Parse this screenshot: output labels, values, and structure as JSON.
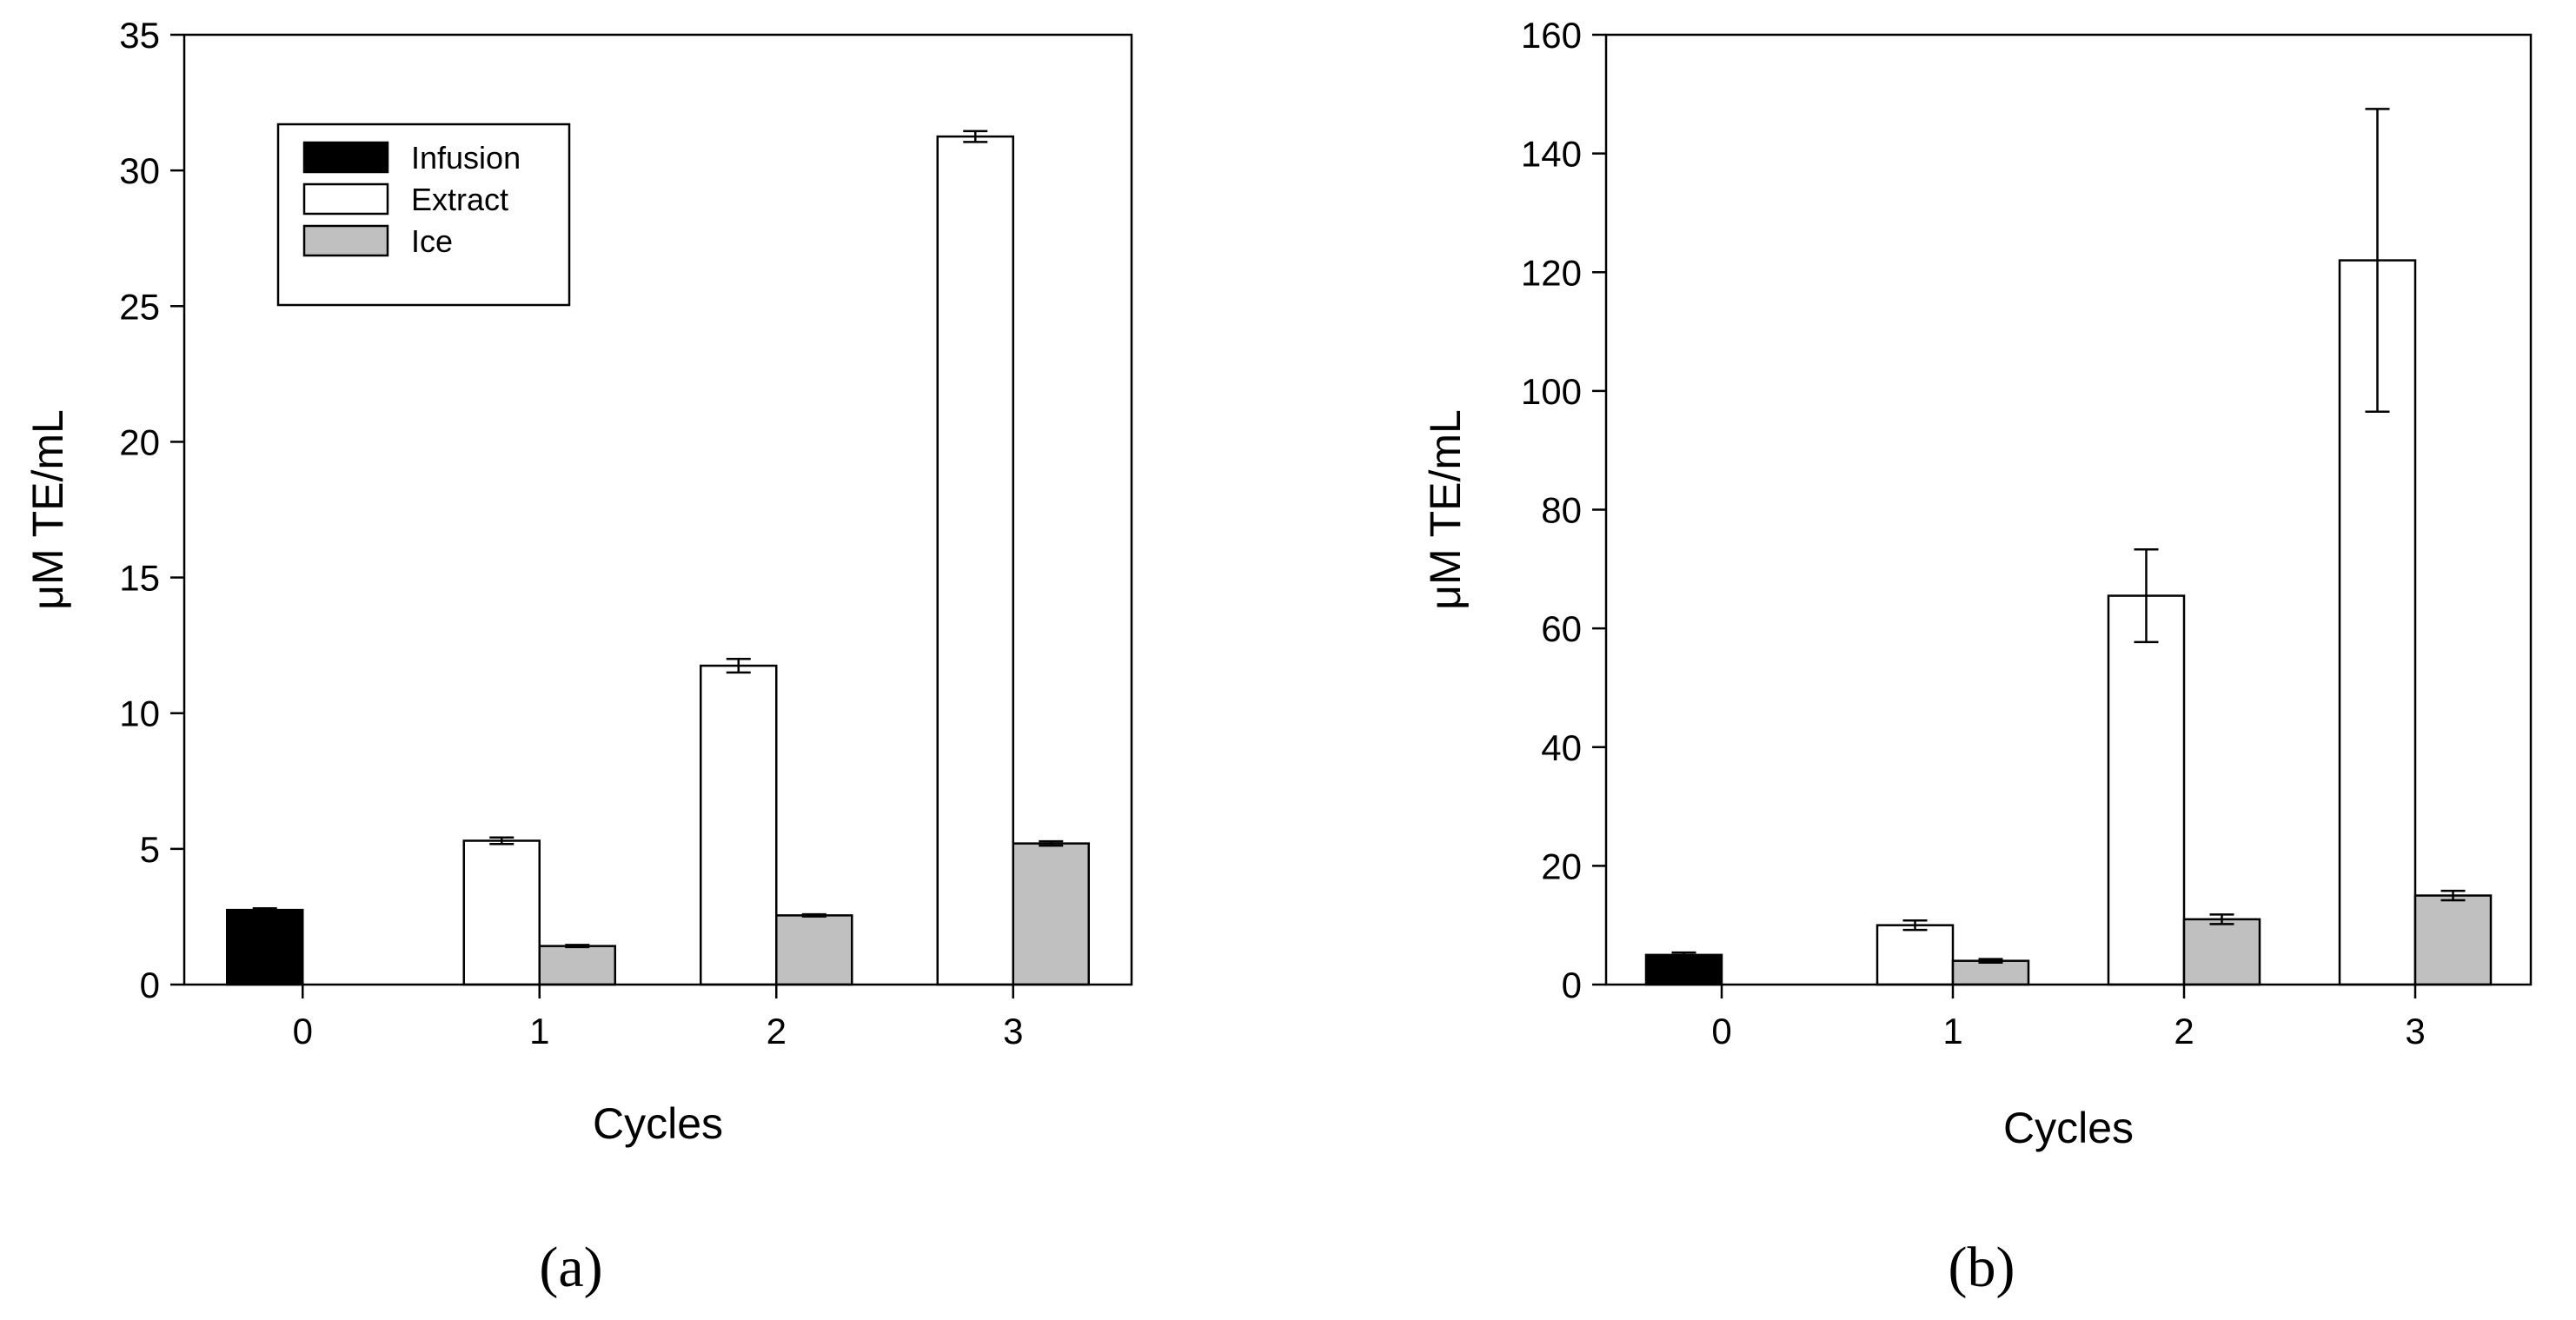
{
  "chart_data": [
    {
      "type": "bar",
      "panel_label": "(a)",
      "categories": [
        "0",
        "1",
        "2",
        "3"
      ],
      "series": [
        {
          "name": "Infusion",
          "values": [
            2.75,
            null,
            null,
            null
          ],
          "errors": [
            0.06,
            null,
            null,
            null
          ],
          "color": "#000000"
        },
        {
          "name": "Extract",
          "values": [
            null,
            5.3,
            11.75,
            31.25
          ],
          "errors": [
            null,
            0.12,
            0.25,
            0.2
          ],
          "color": "#ffffff"
        },
        {
          "name": "Ice",
          "values": [
            null,
            1.42,
            2.55,
            5.2
          ],
          "errors": [
            null,
            0.04,
            0.04,
            0.08
          ],
          "color": "#c0c0c0"
        }
      ],
      "xlabel": "Cycles",
      "ylabel": "μM TE/mL",
      "ylim": [
        0,
        35
      ],
      "yticks": [
        0,
        5,
        10,
        15,
        20,
        25,
        30,
        35
      ],
      "legend": {
        "placement": "top-left",
        "entries": [
          "Infusion",
          "Extract",
          "Ice"
        ]
      },
      "grid": false
    },
    {
      "type": "bar",
      "panel_label": "(b)",
      "categories": [
        "0",
        "1",
        "2",
        "3"
      ],
      "series": [
        {
          "name": "Infusion",
          "values": [
            5,
            null,
            null,
            null
          ],
          "errors": [
            0.4,
            null,
            null,
            null
          ],
          "color": "#000000"
        },
        {
          "name": "Extract",
          "values": [
            null,
            10,
            65.5,
            122
          ],
          "errors": [
            null,
            0.8,
            7.8,
            25.5
          ],
          "color": "#ffffff"
        },
        {
          "name": "Ice",
          "values": [
            null,
            4,
            11,
            15
          ],
          "errors": [
            null,
            0.3,
            0.8,
            0.8
          ],
          "color": "#c0c0c0"
        }
      ],
      "xlabel": "Cycles",
      "ylabel": "μM TE/mL",
      "ylim": [
        0,
        160
      ],
      "yticks": [
        0,
        20,
        40,
        60,
        80,
        100,
        120,
        140,
        160
      ],
      "grid": false
    }
  ]
}
